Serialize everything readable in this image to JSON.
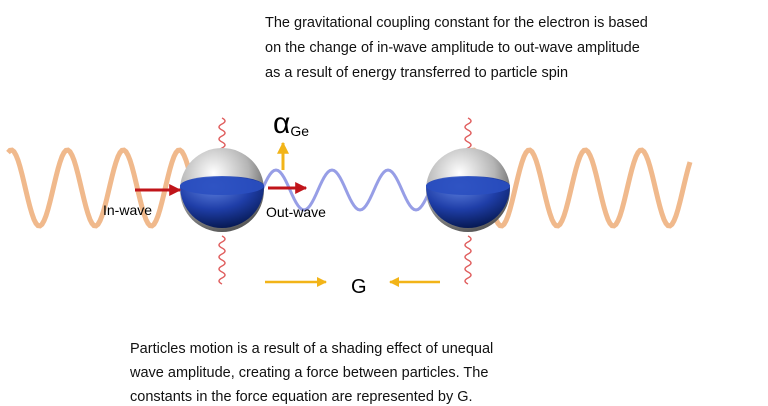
{
  "caption_top": [
    "The gravitational coupling constant for the electron is based",
    "on the change of in-wave amplitude to out-wave amplitude",
    "as a result of energy transferred to particle spin"
  ],
  "alpha": {
    "symbol": "α",
    "subscript": "Ge"
  },
  "labels": {
    "in_wave": "In-wave",
    "out_wave": "Out-wave"
  },
  "force_label": "G",
  "caption_bottom": [
    "Particles motion is a result of a shading effect of unequal",
    "wave amplitude, creating a force between particles.  The",
    "constants in the force equation are represented by G."
  ]
}
